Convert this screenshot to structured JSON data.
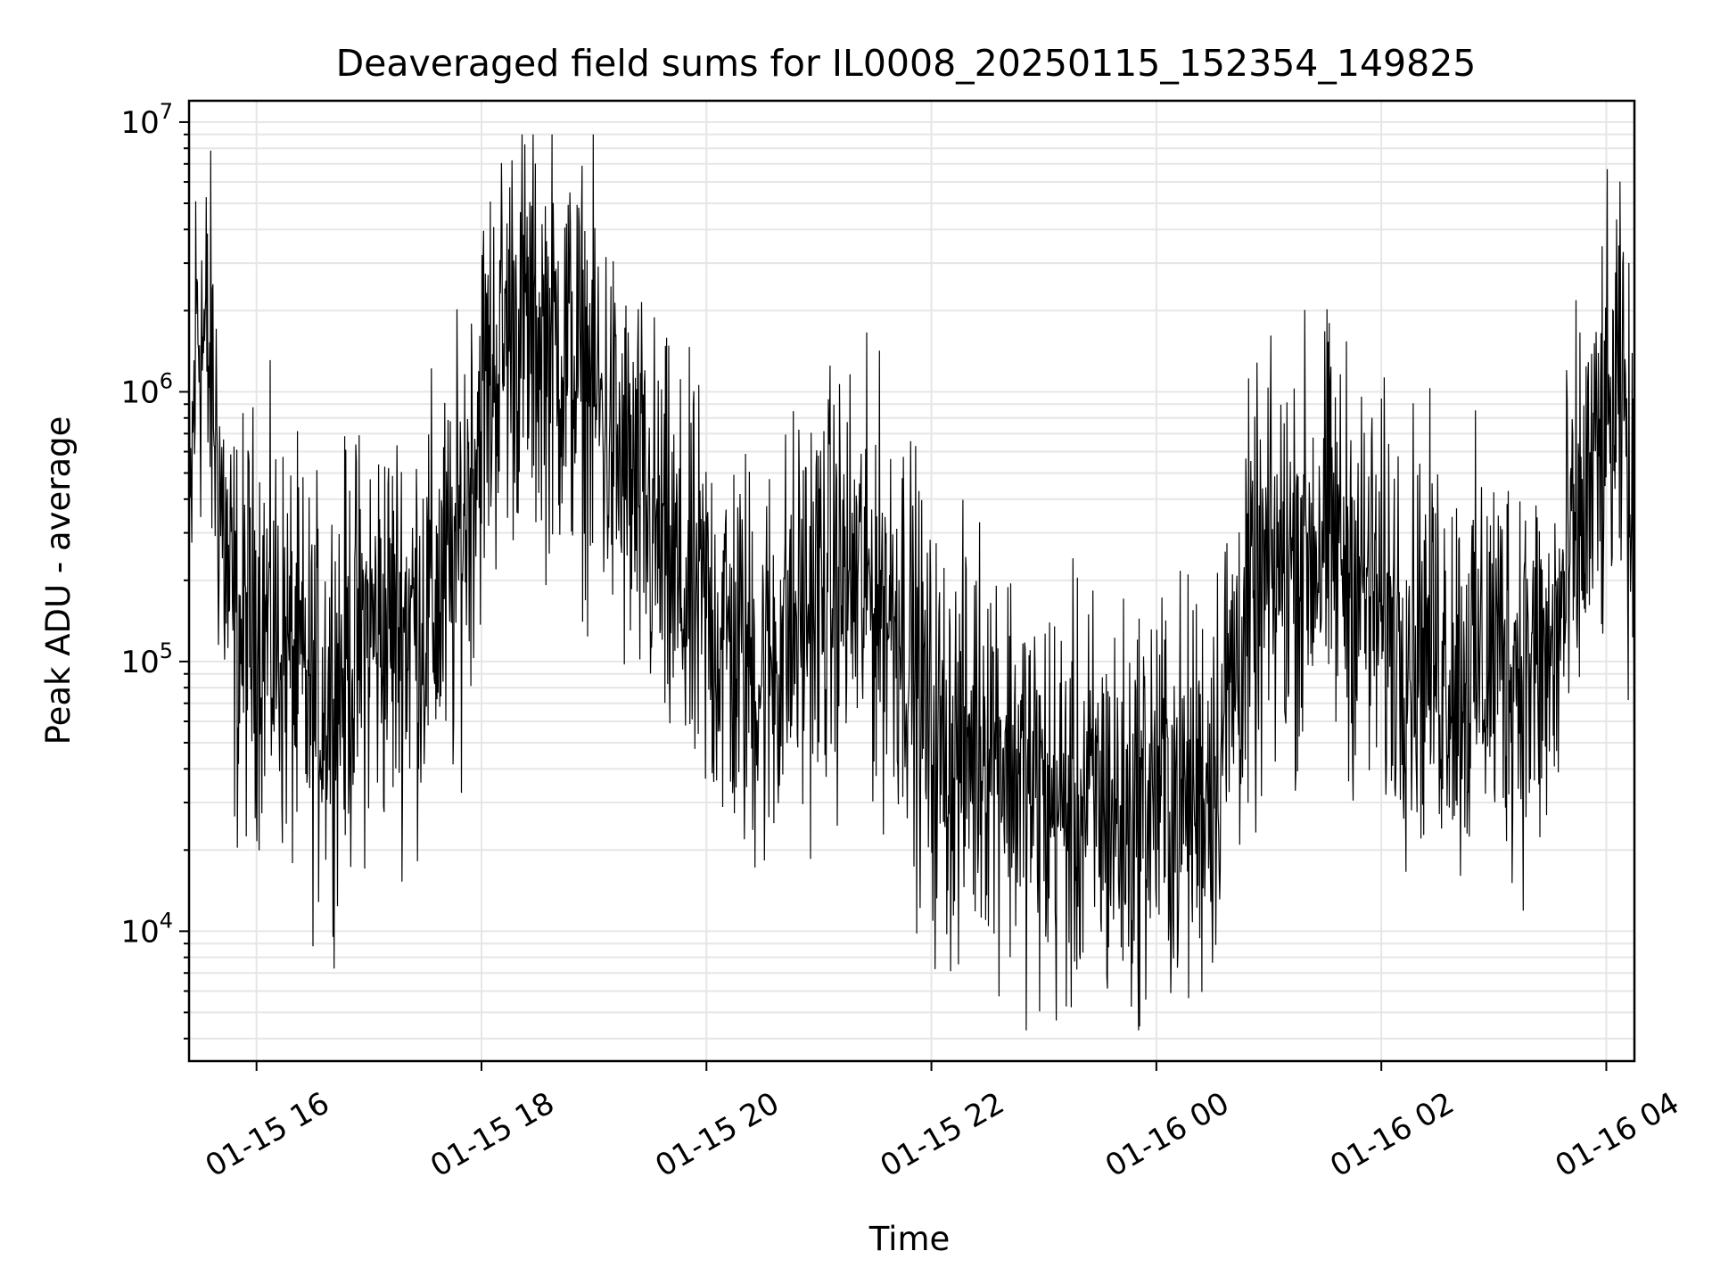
{
  "chart_data": {
    "type": "line",
    "title": "Deaveraged field sums for IL0008_20250115_152354_149825",
    "xlabel": "Time",
    "ylabel": "Peak ADU - average",
    "y_scale": "log",
    "ylim": [
      3300,
      12000000
    ],
    "xlim": [
      "2025-01-15 15:24",
      "2025-01-16 04:15"
    ],
    "grid": true,
    "legend": "none",
    "line_color": "#000000",
    "x_ticks": [
      {
        "label": "01-15 16",
        "value": "2025-01-15 16:00"
      },
      {
        "label": "01-15 18",
        "value": "2025-01-15 18:00"
      },
      {
        "label": "01-15 20",
        "value": "2025-01-15 20:00"
      },
      {
        "label": "01-15 22",
        "value": "2025-01-15 22:00"
      },
      {
        "label": "01-16 00",
        "value": "2025-01-16 00:00"
      },
      {
        "label": "01-16 02",
        "value": "2025-01-16 02:00"
      },
      {
        "label": "01-16 04",
        "value": "2025-01-16 04:00"
      }
    ],
    "y_ticks": [
      {
        "base": "10",
        "exp": "4",
        "value": 10000
      },
      {
        "base": "10",
        "exp": "5",
        "value": 100000
      },
      {
        "base": "10",
        "exp": "6",
        "value": 1000000
      },
      {
        "base": "10",
        "exp": "7",
        "value": 10000000
      }
    ],
    "series": [
      {
        "x": [
          "2025-01-15 15:24",
          "2025-01-15 15:28",
          "2025-01-15 15:32",
          "2025-01-15 15:36",
          "2025-01-15 15:40",
          "2025-01-15 15:45",
          "2025-01-15 15:50",
          "2025-01-15 16:00",
          "2025-01-15 16:15",
          "2025-01-15 16:30",
          "2025-01-15 16:45",
          "2025-01-15 17:00",
          "2025-01-15 17:15",
          "2025-01-15 17:30",
          "2025-01-15 17:45",
          "2025-01-15 18:00",
          "2025-01-15 18:15",
          "2025-01-15 18:30",
          "2025-01-15 18:45",
          "2025-01-15 19:00",
          "2025-01-15 19:15",
          "2025-01-15 19:30",
          "2025-01-15 19:45",
          "2025-01-15 20:00",
          "2025-01-15 20:15",
          "2025-01-15 20:30",
          "2025-01-15 20:45",
          "2025-01-15 21:00",
          "2025-01-15 21:15",
          "2025-01-15 21:30",
          "2025-01-15 21:45",
          "2025-01-15 22:00",
          "2025-01-15 22:15",
          "2025-01-15 22:30",
          "2025-01-15 22:45",
          "2025-01-15 23:00",
          "2025-01-15 23:15",
          "2025-01-15 23:30",
          "2025-01-15 23:45",
          "2025-01-16 00:00",
          "2025-01-16 00:15",
          "2025-01-16 00:30",
          "2025-01-16 00:45",
          "2025-01-16 01:00",
          "2025-01-16 01:15",
          "2025-01-16 01:30",
          "2025-01-16 01:45",
          "2025-01-16 02:00",
          "2025-01-16 02:15",
          "2025-01-16 02:30",
          "2025-01-16 02:45",
          "2025-01-16 03:00",
          "2025-01-16 03:15",
          "2025-01-16 03:30",
          "2025-01-16 03:45",
          "2025-01-16 04:00",
          "2025-01-16 04:10",
          "2025-01-16 04:15"
        ],
        "y": [
          180000,
          2000000,
          1500000,
          1100000,
          500000,
          180000,
          120000,
          150000,
          110000,
          70000,
          90000,
          130000,
          140000,
          150000,
          200000,
          900000,
          1800000,
          1600000,
          1400000,
          1000000,
          500000,
          320000,
          180000,
          150000,
          110000,
          90000,
          130000,
          180000,
          200000,
          180000,
          150000,
          50000,
          45000,
          60000,
          40000,
          30000,
          28000,
          30000,
          25000,
          35000,
          30000,
          40000,
          120000,
          200000,
          250000,
          300000,
          220000,
          150000,
          130000,
          110000,
          90000,
          110000,
          100000,
          90000,
          300000,
          700000,
          900000,
          150000
        ],
        "noise": 0.5
      }
    ]
  }
}
